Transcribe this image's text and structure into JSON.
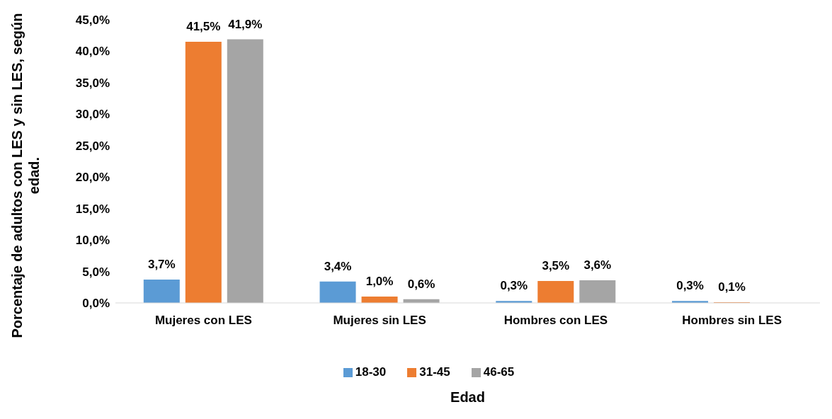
{
  "chart_data": {
    "type": "bar",
    "xlabel": "Edad",
    "ylabel": "Porcentaje de adultos con LES y sin LES, según edad.",
    "categories": [
      "Mujeres con LES",
      "Mujeres sin LES",
      "Hombres con LES",
      "Hombres sin LES"
    ],
    "series": [
      {
        "name": "18-30",
        "color": "#5b9bd5",
        "values": [
          3.7,
          3.4,
          0.3,
          0.3
        ],
        "value_labels": [
          "3,7%",
          "3,4%",
          "0,3%",
          "0,3%"
        ]
      },
      {
        "name": "31-45",
        "color": "#ed7d31",
        "values": [
          41.5,
          1.0,
          3.5,
          0.1
        ],
        "value_labels": [
          "41,5%",
          "1,0%",
          "3,5%",
          "0,1%"
        ]
      },
      {
        "name": "46-65",
        "color": "#a5a5a5",
        "values": [
          41.9,
          0.6,
          3.6,
          null
        ],
        "value_labels": [
          "41,9%",
          "0,6%",
          "3,6%",
          null
        ]
      }
    ],
    "ylim": [
      0,
      45
    ],
    "yticks": [
      {
        "value": 0,
        "label": "0,0%"
      },
      {
        "value": 5,
        "label": "5,0%"
      },
      {
        "value": 10,
        "label": "10,0%"
      },
      {
        "value": 15,
        "label": "15,0%"
      },
      {
        "value": 20,
        "label": "20,0%"
      },
      {
        "value": 25,
        "label": "25,0%"
      },
      {
        "value": 30,
        "label": "30,0%"
      },
      {
        "value": 35,
        "label": "35,0%"
      },
      {
        "value": 40,
        "label": "40,0%"
      },
      {
        "value": 45,
        "label": "45,0%"
      }
    ],
    "grid": false,
    "legend": "bottom"
  }
}
